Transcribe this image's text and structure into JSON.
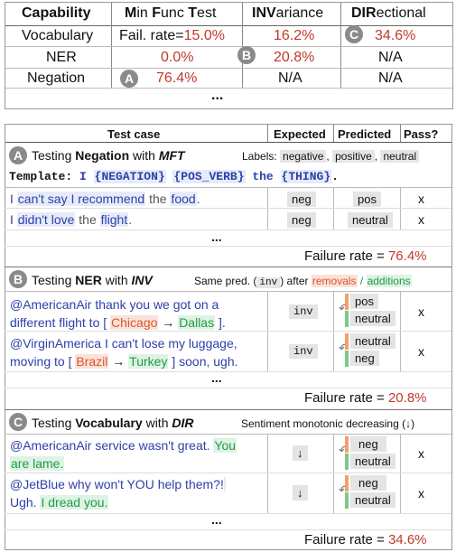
{
  "top_table": {
    "headers": {
      "capability": "Capability",
      "mft": "Min Func Test",
      "mft_M": "M",
      "mft_in": "in ",
      "mft_F": "F",
      "mft_unc": "unc ",
      "mft_T": "T",
      "mft_est": "est",
      "inv_bold": "INV",
      "inv_rest": "ariance",
      "dir_bold": "DIR",
      "dir_rest": "ectional"
    },
    "rows": [
      {
        "capability": "Vocabulary",
        "mft_prefix": "Fail. rate=",
        "mft": "15.0%",
        "inv": "16.2%",
        "dir": "34.6%"
      },
      {
        "capability": "NER",
        "mft": "0.0%",
        "inv": "20.8%",
        "dir": "N/A"
      },
      {
        "capability": "Negation",
        "mft": "76.4%",
        "inv": "N/A",
        "dir": "N/A"
      }
    ],
    "ellipsis": "..."
  },
  "badges": {
    "a": "A",
    "b": "B",
    "c": "C"
  },
  "main_table": {
    "headers": {
      "test_case": "Test case",
      "expected": "Expected",
      "predicted": "Predicted",
      "pass": "Pass?"
    },
    "section_a": {
      "title_pre": "Testing ",
      "title_cap": "Negation",
      "title_mid": " with ",
      "title_test": "MFT",
      "labels_prefix": "Labels: ",
      "label1": "negative",
      "label2": "positive",
      "label3": "neutral",
      "template_label": "Template:",
      "template_parts": [
        "I",
        "{NEGATION}",
        "{POS_VERB}",
        "the",
        "{THING}",
        "."
      ],
      "rows": [
        {
          "w1": "I ",
          "w2": "can't say I recommend",
          "w3": " the ",
          "w4": "food",
          "w5": ".",
          "expected": "neg",
          "predicted": "pos",
          "pass": "X"
        },
        {
          "w1": "I ",
          "w2": "didn't love",
          "w3": " the ",
          "w4": "flight",
          "w5": ".",
          "expected": "neg",
          "predicted": "neutral",
          "pass": "X"
        }
      ],
      "ellipsis": "...",
      "failure_label": "Failure rate = ",
      "failure_value": "76.4%"
    },
    "section_b": {
      "title_pre": "Testing ",
      "title_cap": "NER",
      "title_mid": " with ",
      "title_test": "INV",
      "desc_pre": "Same pred. (",
      "desc_code": "inv",
      "desc_post": ") after ",
      "removals": "removals",
      "slash": " / ",
      "additions": "additions",
      "rows": [
        {
          "line1": "@AmericanAir thank you we got on a",
          "line2_pre": "different flight to [ ",
          "from": "Chicago",
          "arrow": " → ",
          "to": "Dallas",
          "line2_post": " ].",
          "expected": "inv",
          "pred1": "pos",
          "pred2": "neutral",
          "pass": "X"
        },
        {
          "line1": "@VirginAmerica I can't lose my luggage,",
          "line2_pre": "moving to [ ",
          "from": "Brazil",
          "arrow": " → ",
          "to": "Turkey",
          "line2_post": " ] soon, ugh.",
          "expected": "inv",
          "pred1": "neutral",
          "pred2": "neg",
          "pass": "X"
        }
      ],
      "ellipsis": "...",
      "failure_label": "Failure rate = ",
      "failure_value": "20.8%"
    },
    "section_c": {
      "title_pre": "Testing ",
      "title_cap": "Vocabulary",
      "title_mid": " with ",
      "title_test": "DIR",
      "desc": "Sentiment monotonic decreasing (↓)",
      "rows": [
        {
          "line1_pre": "@AmericanAir service wasn't great. ",
          "line1_hl": "You",
          "line2_hl": "are lame.",
          "line2_post": "",
          "expected": "↓",
          "pred1": "neg",
          "pred2": "neutral",
          "pass": "X"
        },
        {
          "line1_pre": "@JetBlue why won't YOU help them?!",
          "line1_hl": "",
          "line2_pre": "Ugh. ",
          "line2_hl": "I dread you.",
          "expected": "↓",
          "pred1": "neg",
          "pred2": "neutral",
          "pass": "X"
        }
      ],
      "ellipsis": "...",
      "failure_label": "Failure rate = ",
      "failure_value": "34.6%"
    }
  },
  "colors": {
    "failure_red": "#c0392b",
    "highlight_blue": "#2d3fa8",
    "removal_orange": "#d9572f",
    "addition_green": "#1f9a45",
    "badge_gray": "#8a8a8a"
  }
}
